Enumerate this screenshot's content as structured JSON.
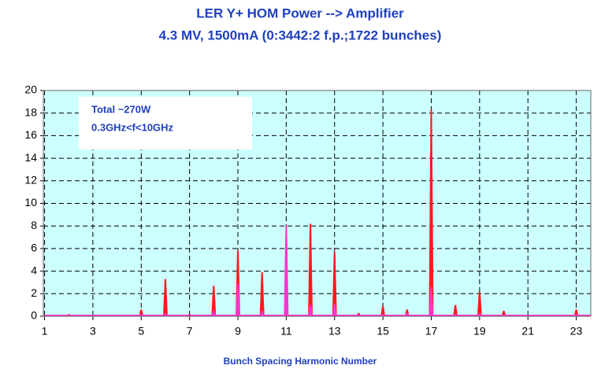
{
  "chart_data": {
    "type": "bar",
    "title": "LER Y+ HOM Power --> Amplifier",
    "subtitle": "4.3 MV, 1500mA (0:3442:2 f.p.;1722 bunches)",
    "x_label": "Bunch Spacing Harmonic Number",
    "annotations": [
      "Total ~270W",
      "0.3GHz<f<10GHz"
    ],
    "x": [
      1,
      2,
      3,
      4,
      5,
      6,
      7,
      8,
      9,
      10,
      11,
      12,
      13,
      14,
      15,
      16,
      17,
      18,
      19,
      20,
      21,
      22,
      23
    ],
    "series": [
      {
        "color": "#ff1a1a",
        "values": [
          0,
          0.2,
          0.1,
          0.1,
          0.6,
          3.3,
          0.2,
          2.7,
          5.8,
          3.9,
          0.3,
          8.2,
          5.7,
          0.3,
          0.9,
          0.6,
          18.3,
          1.0,
          2.2,
          0.5,
          0.1,
          0.1,
          0.6
        ]
      },
      {
        "color": "#ff33cc",
        "values": [
          0,
          0,
          0,
          0,
          0.2,
          0.3,
          0,
          0.5,
          2.9,
          0.5,
          8.0,
          1.0,
          1.1,
          0,
          0.2,
          0.3,
          2.6,
          0.2,
          0.3,
          0.1,
          0,
          0,
          0.2
        ]
      }
    ],
    "xlim": [
      0.95,
      23.6
    ],
    "xticks": [
      1,
      3,
      5,
      7,
      9,
      11,
      13,
      15,
      17,
      19,
      21,
      23
    ],
    "ylim": [
      0,
      20
    ],
    "yticks": [
      0,
      2,
      4,
      6,
      8,
      10,
      12,
      14,
      16,
      18,
      20
    ],
    "grid": true,
    "background": "#ccffff"
  }
}
